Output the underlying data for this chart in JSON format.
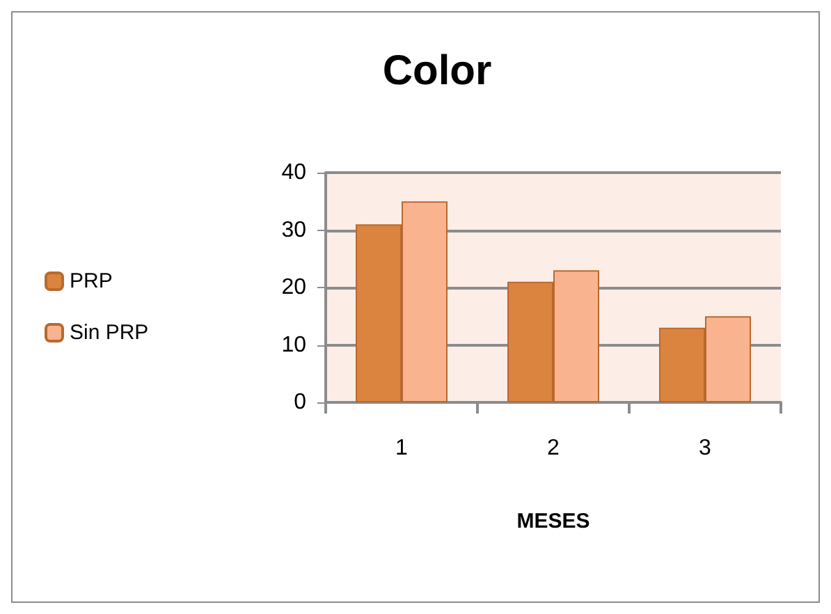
{
  "chart_data": {
    "type": "bar",
    "title": "Color",
    "xlabel": "MESES",
    "categories": [
      "1",
      "2",
      "3"
    ],
    "series": [
      {
        "name": "PRP",
        "color": "#db843f",
        "values": [
          31,
          21,
          13
        ]
      },
      {
        "name": "Sin PRP",
        "color": "#f9b48f",
        "values": [
          35,
          23,
          15
        ]
      }
    ],
    "ylim": [
      0,
      40
    ],
    "yticks": [
      0,
      10,
      20,
      30,
      40
    ],
    "grid": "y",
    "legend": "left"
  }
}
